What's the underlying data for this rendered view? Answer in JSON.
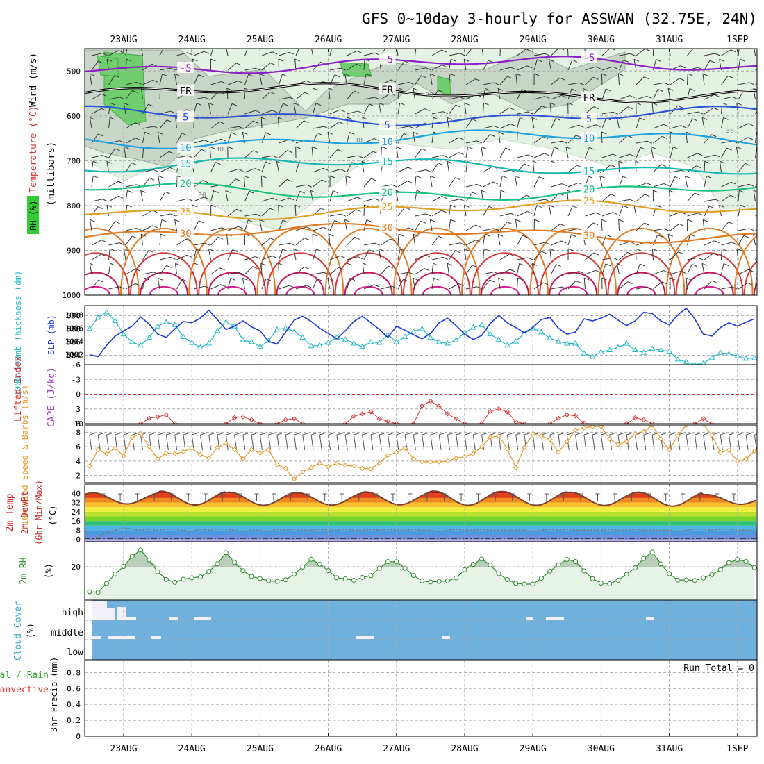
{
  "title": "GFS 0~10day 3-hourly for ASSWAN (32.75E, 24N)",
  "chart_data": [
    {
      "panel": "upper-air",
      "type": "heatmap",
      "ylabel": "(millibars)",
      "yticks": [
        500,
        600,
        700,
        800,
        900,
        1000
      ],
      "ylim": [
        450,
        1000
      ],
      "y_scale": "inverted",
      "legend": [
        "RH (%)",
        "Temperature (°C)",
        "Wind (m/s)"
      ],
      "legend_colors": [
        "#33cc33",
        "#cc3333",
        "#000000"
      ],
      "dates": [
        "23AUG",
        "24AUG",
        "25AUG",
        "26AUG",
        "27AUG",
        "28AUG",
        "29AUG",
        "30AUG",
        "31AUG",
        "1SEP"
      ],
      "isotherms": [
        {
          "label": "-5",
          "pressure_mb": 487,
          "color": "#8a1fc7"
        },
        {
          "label": "FR",
          "pressure_mb": 548,
          "color": "#000000"
        },
        {
          "label": "5",
          "pressure_mb": 600,
          "color": "#2b52d9"
        },
        {
          "label": "10",
          "pressure_mb": 652,
          "color": "#1ba0e0"
        },
        {
          "label": "15",
          "pressure_mb": 712,
          "color": "#16b8b0"
        },
        {
          "label": "20",
          "pressure_mb": 768,
          "color": "#17c27f"
        },
        {
          "label": "25",
          "pressure_mb": 810,
          "color": "#dda12a"
        },
        {
          "label": "30",
          "pressure_mb": 862,
          "color": "#e07a24"
        }
      ],
      "rh_contour_labels": [
        "30",
        "30",
        "30",
        "30",
        "30"
      ]
    },
    {
      "panel": "thickness-slp",
      "type": "line",
      "ylabel_left": "1000-500mb Thickness (dm)",
      "ylabel_right": "SLP (mb)",
      "yticks_left": [
        584,
        586,
        588,
        590
      ],
      "yticks_right": [
        1002,
        1004,
        1006,
        1008
      ],
      "x_days": [
        -0.5,
        -0.375,
        -0.25,
        -0.125,
        0,
        0.125,
        0.25,
        0.375,
        0.5,
        0.625,
        0.75,
        0.875,
        1,
        1.125,
        1.25,
        1.375,
        1.5,
        1.625,
        1.75,
        1.875,
        2,
        2.125,
        2.25,
        2.375,
        2.5,
        2.625,
        2.75,
        2.875,
        3,
        3.125,
        3.25,
        3.375,
        3.5,
        3.625,
        3.75,
        3.875,
        4,
        4.125,
        4.25,
        4.375,
        4.5,
        4.625,
        4.75,
        4.875,
        5,
        5.125,
        5.25,
        5.375,
        5.5,
        5.625,
        5.75,
        5.875,
        6,
        6.125,
        6.25,
        6.375,
        6.5,
        6.625,
        6.75,
        6.875,
        7,
        7.125,
        7.25,
        7.375,
        7.5,
        7.625,
        7.75,
        7.875,
        8,
        8.125,
        8.25,
        8.375,
        8.5,
        8.625,
        8.75,
        8.875,
        9,
        9.125,
        9.25
      ],
      "series": [
        {
          "name": "1000-500mb Thickness",
          "color": "#22b8c8",
          "marker": "triangle",
          "values": [
            588.0,
            589.7,
            590.5,
            589.2,
            587.2,
            586.0,
            585.5,
            586.7,
            588.4,
            589.0,
            588.6,
            586.8,
            585.9,
            585.2,
            585.8,
            587.7,
            589.0,
            588.4,
            586.3,
            586.0,
            585.3,
            586.2,
            587.9,
            588.1,
            587.6,
            586.7,
            585.4,
            585.5,
            585.9,
            586.7,
            586.4,
            585.8,
            585.3,
            586.0,
            585.9,
            587.1,
            586.0,
            586.8,
            587.6,
            588.0,
            586.7,
            586.0,
            585.8,
            586.3,
            587.4,
            588.2,
            588.6,
            587.2,
            586.4,
            585.5,
            586.1,
            587.3,
            588.1,
            587.5,
            586.6,
            586.1,
            585.8,
            585.8,
            584.3,
            583.8,
            584.5,
            584.8,
            585.2,
            585.8,
            584.8,
            584.4,
            585.0,
            584.8,
            584.6,
            583.4,
            583.0,
            582.6,
            582.8,
            583.6,
            584.4,
            584.2,
            583.9,
            583.5,
            583.6
          ]
        },
        {
          "name": "SLP",
          "color": "#1a3ad4",
          "marker": "none",
          "values": [
            1002.0,
            1001.7,
            1003.4,
            1004.8,
            1005.6,
            1006.3,
            1007.7,
            1006.6,
            1005.1,
            1004.6,
            1005.9,
            1007.0,
            1006.8,
            1007.5,
            1008.7,
            1007.3,
            1005.8,
            1006.3,
            1007.1,
            1006.2,
            1005.6,
            1004.0,
            1003.6,
            1005.4,
            1007.2,
            1007.8,
            1007.0,
            1006.0,
            1005.2,
            1004.4,
            1005.6,
            1007.0,
            1007.8,
            1006.8,
            1005.8,
            1004.6,
            1006.3,
            1005.7,
            1005.0,
            1004.4,
            1005.2,
            1006.8,
            1007.5,
            1006.4,
            1005.1,
            1004.3,
            1004.9,
            1006.7,
            1007.9,
            1006.8,
            1006.1,
            1005.3,
            1006.1,
            1007.3,
            1007.6,
            1006.0,
            1005.1,
            1005.4,
            1007.4,
            1007.1,
            1007.5,
            1008.1,
            1007.2,
            1006.4,
            1007.1,
            1008.4,
            1008.2,
            1007.1,
            1006.5,
            1008.0,
            1009.0,
            1007.4,
            1005.1,
            1004.8,
            1006.1,
            1006.8,
            1006.3,
            1006.9,
            1007.4
          ]
        }
      ]
    },
    {
      "panel": "cape-li",
      "type": "line",
      "ylabel_left": "Lifted Index",
      "ylabel_right": "CAPE (J/kg)",
      "yticks_left": [
        "-6",
        "-3",
        "0",
        "3",
        "6"
      ],
      "yticks_right": [
        "10"
      ],
      "ylim": [
        -6,
        6
      ],
      "zero_line": 0,
      "series": [
        {
          "name": "Lifted Index",
          "color": "#d23a3a",
          "points": [
            [
              0.25,
              6.0
            ],
            [
              0.375,
              4.9
            ],
            [
              0.5,
              4.6
            ],
            [
              0.625,
              4.2
            ],
            [
              0.75,
              6.0
            ],
            [
              1.5,
              6.0
            ],
            [
              1.625,
              4.8
            ],
            [
              1.75,
              4.6
            ],
            [
              1.875,
              5.2
            ],
            [
              2.0,
              6.0
            ],
            [
              2.25,
              6.0
            ],
            [
              2.375,
              5.2
            ],
            [
              2.5,
              5.0
            ],
            [
              2.625,
              6.0
            ],
            [
              3.25,
              6.0
            ],
            [
              3.375,
              4.5
            ],
            [
              3.5,
              4.0
            ],
            [
              3.625,
              3.6
            ],
            [
              3.75,
              5.0
            ],
            [
              3.875,
              5.5
            ],
            [
              4.0,
              6.0
            ],
            [
              4.25,
              6.0
            ],
            [
              4.375,
              2.4
            ],
            [
              4.5,
              1.4
            ],
            [
              4.625,
              2.5
            ],
            [
              4.75,
              4.0
            ],
            [
              4.875,
              5.0
            ],
            [
              5.0,
              6.0
            ],
            [
              5.25,
              6.0
            ],
            [
              5.375,
              3.5
            ],
            [
              5.5,
              3.0
            ],
            [
              5.625,
              3.6
            ],
            [
              5.75,
              5.6
            ],
            [
              5.875,
              6.0
            ],
            [
              6.25,
              6.0
            ],
            [
              6.375,
              4.9
            ],
            [
              6.5,
              4.2
            ],
            [
              6.625,
              4.4
            ],
            [
              6.75,
              5.9
            ],
            [
              7.375,
              6.0
            ],
            [
              7.5,
              4.8
            ],
            [
              7.625,
              5.2
            ],
            [
              7.75,
              6.0
            ],
            [
              8.375,
              6.0
            ],
            [
              8.5,
              5.0
            ],
            [
              8.625,
              6.0
            ]
          ]
        }
      ]
    },
    {
      "panel": "10m-wind",
      "type": "line",
      "ylabel": "10m Wind Speed & Barbs (m/s)",
      "yticks": [
        2,
        4,
        6,
        8
      ],
      "ylim": [
        1,
        9
      ],
      "series": [
        {
          "name": "10m Wind Speed",
          "color": "#e19a2e",
          "marker": "diamond",
          "values": [
            3.3,
            5.6,
            5.0,
            5.8,
            4.7,
            7.3,
            7.8,
            6.0,
            4.3,
            5.1,
            5.0,
            5.3,
            5.8,
            4.9,
            4.4,
            5.9,
            6.5,
            5.6,
            4.3,
            5.6,
            5.1,
            5.6,
            3.5,
            3.0,
            1.5,
            2.5,
            3.1,
            3.7,
            3.2,
            3.7,
            3.4,
            3.3,
            3.0,
            2.9,
            3.7,
            4.8,
            5.2,
            5.8,
            4.3,
            3.9,
            3.9,
            3.9,
            4.0,
            4.4,
            4.6,
            5.0,
            6.0,
            7.3,
            7.5,
            5.7,
            3.1,
            5.9,
            7.8,
            7.5,
            7.0,
            5.2,
            6.7,
            8.3,
            8.6,
            8.8,
            8.8,
            7.1,
            6.3,
            6.7,
            7.8,
            8.1,
            9.0,
            7.1,
            5.6,
            7.5,
            9.0,
            9.2,
            9.1,
            7.6,
            5.2,
            5.5,
            4.0,
            4.3,
            5.4,
            6.0
          ]
        }
      ]
    },
    {
      "panel": "2m-temp",
      "type": "area",
      "ylabel": "2m Temp 2m DewPt (6hr Min/Max) (°C)",
      "yticks": [
        0,
        8,
        16,
        24,
        32,
        40
      ],
      "ylim": [
        -2,
        48
      ],
      "series": [
        {
          "name": "2m Temp",
          "color": "#7a4030",
          "daily_min": [
            30.8,
            29.9,
            29.6,
            29.8,
            30.1,
            29.6,
            29.6,
            29.5,
            28.9,
            30.5
          ],
          "daily_max": [
            40.4,
            41.8,
            40.9,
            40.5,
            41.2,
            41.9,
            41.6,
            40.9,
            41.0,
            39.0
          ]
        },
        {
          "name": "2m DewPt",
          "color": "#777777",
          "values": [
            -1,
            2,
            6,
            8,
            10,
            9,
            8,
            9,
            8,
            9,
            9,
            8,
            7,
            9,
            8,
            9,
            9,
            8,
            7,
            8,
            8,
            7,
            9,
            8,
            9,
            8,
            8,
            9,
            8,
            8,
            9,
            8,
            8,
            9,
            8,
            9,
            8,
            8,
            9,
            8,
            8,
            7,
            8,
            9,
            8,
            8,
            9,
            8,
            8,
            8,
            8,
            8,
            7,
            8,
            9,
            8,
            9,
            8,
            8,
            8,
            8,
            9,
            8,
            8,
            9,
            8,
            8,
            8,
            8,
            7,
            8,
            9,
            9,
            8,
            9,
            9,
            8,
            8,
            8
          ]
        }
      ]
    },
    {
      "panel": "2m-rh",
      "type": "area",
      "ylabel": "2m RH (%)",
      "yticks": [
        20
      ],
      "ylim": [
        0,
        35
      ],
      "series": [
        {
          "name": "2m RH",
          "color": "#2e8a2e",
          "values": [
            5.0,
            4.7,
            10.0,
            15.6,
            20.2,
            26.3,
            30.1,
            24.0,
            17.0,
            12.4,
            10.7,
            12.5,
            13.4,
            13.9,
            17.2,
            21.8,
            28.4,
            22.6,
            17.6,
            14.2,
            12.9,
            11.6,
            11.2,
            12.2,
            15.6,
            19.9,
            24.5,
            21.5,
            17.7,
            13.4,
            12.7,
            11.9,
            13.6,
            14.7,
            19.1,
            23.1,
            23.0,
            19.1,
            14.8,
            11.5,
            10.9,
            11.2,
            11.5,
            13.3,
            18.2,
            21.4,
            24.6,
            21.1,
            15.8,
            12.3,
            10.1,
            9.6,
            9.6,
            13.1,
            17.4,
            21.1,
            24.4,
            23.1,
            17.5,
            12.8,
            10.2,
            9.8,
            11.9,
            15.5,
            19.4,
            25.0,
            28.8,
            21.7,
            15.8,
            12.0,
            12.1,
            11.8,
            13.3,
            15.3,
            18.2,
            22.4,
            24.3,
            23.2,
            19.5
          ]
        }
      ]
    },
    {
      "panel": "cloud-cover",
      "type": "heatmap",
      "ylabel": "Cloud Cover (%)",
      "layers": [
        "high",
        "middle",
        "low"
      ],
      "background_color": "#6fb0dc",
      "clear_color": "#f0f0f6"
    },
    {
      "panel": "precip",
      "type": "bar",
      "ylabel": "3hr Precip (mm)",
      "legend": [
        "Total / Rain",
        "Convective"
      ],
      "legend_colors": [
        "#33aa33",
        "#e03030"
      ],
      "yticks": [
        0,
        0.2,
        0.4,
        0.6,
        0.8
      ],
      "ylim": [
        0,
        0.96
      ],
      "annotation": "Run Total = 0",
      "values": []
    }
  ]
}
